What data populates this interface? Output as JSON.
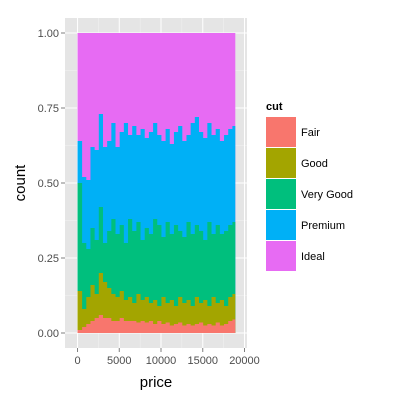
{
  "chart_data": {
    "type": "area",
    "title": "",
    "xlabel": "price",
    "ylabel": "count",
    "xlim": [
      -1500,
      20300
    ],
    "ylim": [
      -0.05,
      1.05
    ],
    "x_ticks": [
      0,
      5000,
      10000,
      15000,
      20000
    ],
    "x_tick_labels": [
      "0",
      "5000",
      "10000",
      "15000",
      "20000"
    ],
    "y_ticks": [
      0,
      0.25,
      0.5,
      0.75,
      1
    ],
    "y_tick_labels": [
      "0.00",
      "0.25",
      "0.50",
      "0.75",
      "1.00"
    ],
    "grid": true,
    "panel_background": "#e5e5e5",
    "position": "fill",
    "x": [
      300,
      800,
      1300,
      1800,
      2300,
      2800,
      3300,
      3800,
      4300,
      4800,
      5300,
      5800,
      6300,
      6800,
      7300,
      7800,
      8300,
      8800,
      9300,
      9800,
      10300,
      10800,
      11300,
      11800,
      12300,
      12800,
      13300,
      13800,
      14300,
      14800,
      15300,
      15800,
      16300,
      16800,
      17300,
      17800,
      18300,
      18800
    ],
    "x_edges": [
      0,
      18900
    ],
    "legend": {
      "title": "cut",
      "placement": "right",
      "entries": [
        "Fair",
        "Good",
        "Very Good",
        "Premium",
        "Ideal"
      ],
      "colors": [
        "#F8766D",
        "#A3A500",
        "#00BF7D",
        "#00B0F6",
        "#E76BF3"
      ]
    },
    "series": [
      {
        "name": "Fair",
        "color": "#F8766D",
        "cumulative": [
          0.01,
          0.02,
          0.03,
          0.04,
          0.05,
          0.06,
          0.05,
          0.05,
          0.04,
          0.04,
          0.05,
          0.04,
          0.04,
          0.04,
          0.035,
          0.04,
          0.035,
          0.04,
          0.03,
          0.04,
          0.03,
          0.035,
          0.025,
          0.03,
          0.035,
          0.025,
          0.03,
          0.025,
          0.03,
          0.035,
          0.025,
          0.03,
          0.025,
          0.035,
          0.025,
          0.03,
          0.04,
          0.045
        ]
      },
      {
        "name": "Good",
        "color": "#A3A500",
        "cumulative": [
          0.14,
          0.08,
          0.12,
          0.16,
          0.13,
          0.2,
          0.17,
          0.15,
          0.13,
          0.12,
          0.14,
          0.11,
          0.12,
          0.1,
          0.13,
          0.11,
          0.12,
          0.1,
          0.11,
          0.09,
          0.12,
          0.1,
          0.11,
          0.09,
          0.12,
          0.1,
          0.11,
          0.09,
          0.12,
          0.1,
          0.11,
          0.09,
          0.12,
          0.1,
          0.11,
          0.09,
          0.12,
          0.13
        ]
      },
      {
        "name": "Very Good",
        "color": "#00BF7D",
        "cumulative": [
          0.5,
          0.3,
          0.28,
          0.35,
          0.31,
          0.42,
          0.3,
          0.34,
          0.38,
          0.33,
          0.36,
          0.3,
          0.38,
          0.34,
          0.37,
          0.31,
          0.35,
          0.33,
          0.38,
          0.36,
          0.32,
          0.37,
          0.33,
          0.36,
          0.34,
          0.32,
          0.37,
          0.33,
          0.36,
          0.34,
          0.31,
          0.37,
          0.33,
          0.36,
          0.33,
          0.34,
          0.36,
          0.37
        ]
      },
      {
        "name": "Premium",
        "color": "#00B0F6",
        "cumulative": [
          0.64,
          0.52,
          0.51,
          0.62,
          0.61,
          0.73,
          0.62,
          0.64,
          0.7,
          0.62,
          0.67,
          0.7,
          0.66,
          0.69,
          0.66,
          0.68,
          0.65,
          0.67,
          0.7,
          0.66,
          0.64,
          0.68,
          0.63,
          0.67,
          0.69,
          0.64,
          0.66,
          0.7,
          0.72,
          0.67,
          0.65,
          0.7,
          0.66,
          0.68,
          0.64,
          0.66,
          0.68,
          0.69
        ]
      },
      {
        "name": "Ideal",
        "color": "#E76BF3",
        "cumulative": [
          1,
          1,
          1,
          1,
          1,
          1,
          1,
          1,
          1,
          1,
          1,
          1,
          1,
          1,
          1,
          1,
          1,
          1,
          1,
          1,
          1,
          1,
          1,
          1,
          1,
          1,
          1,
          1,
          1,
          1,
          1,
          1,
          1,
          1,
          1,
          1,
          1,
          1
        ]
      }
    ]
  }
}
